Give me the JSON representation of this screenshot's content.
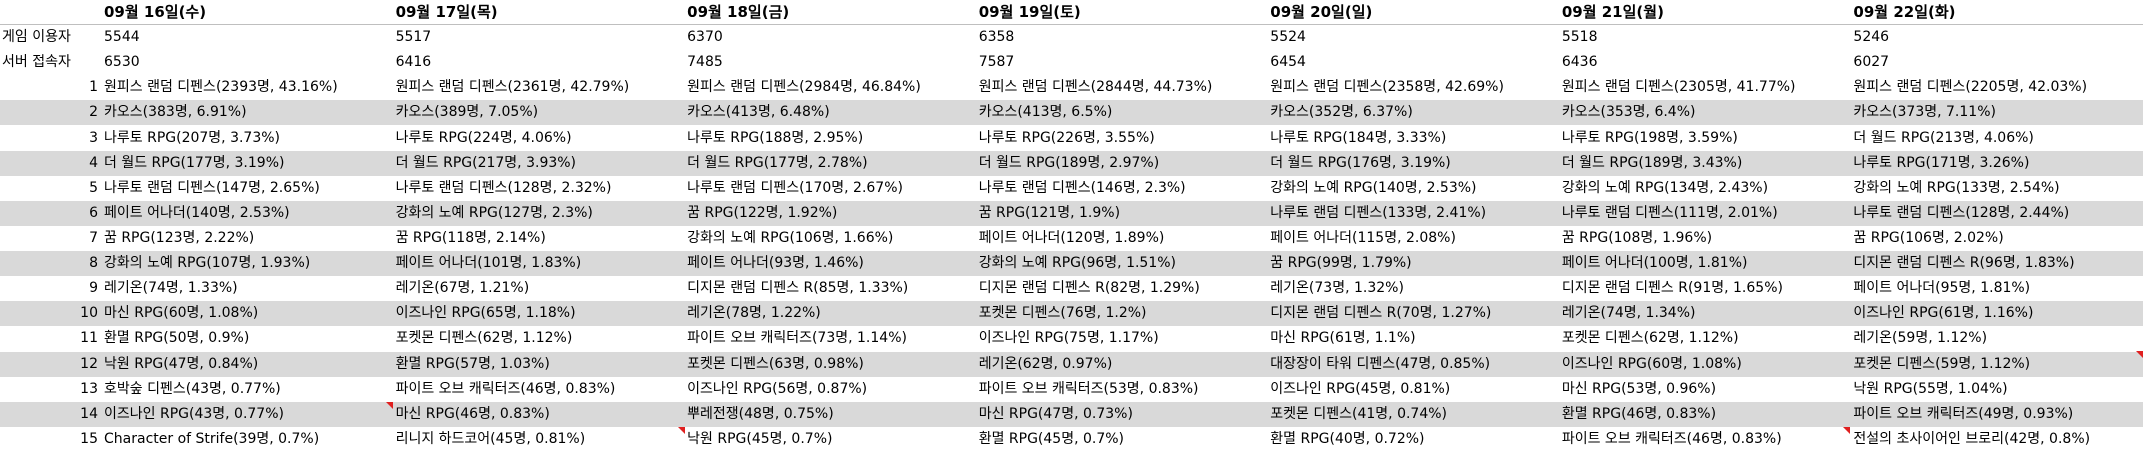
{
  "header": {
    "dates": [
      "09월 16일(수)",
      "09월 17일(목)",
      "09월 18일(금)",
      "09월 19일(토)",
      "09월 20일(일)",
      "09월 21일(월)",
      "09월 22일(화)"
    ]
  },
  "summary": [
    {
      "label": "게임 이용자",
      "values": [
        5544,
        5517,
        6370,
        6358,
        5524,
        5518,
        5246
      ]
    },
    {
      "label": "서버 접속자",
      "values": [
        6530,
        6416,
        7485,
        7587,
        6454,
        6436,
        6027
      ]
    }
  ],
  "ranking": [
    {
      "rank": 1,
      "games": [
        "원피스 랜덤 디펜스(2393명, 43.16%)",
        "원피스 랜덤 디펜스(2361명, 42.79%)",
        "원피스 랜덤 디펜스(2984명, 46.84%)",
        "원피스 랜덤 디펜스(2844명, 44.73%)",
        "원피스 랜덤 디펜스(2358명, 42.69%)",
        "원피스 랜덤 디펜스(2305명, 41.77%)",
        "원피스 랜덤 디펜스(2205명, 42.03%)"
      ]
    },
    {
      "rank": 2,
      "games": [
        "카오스(383명, 6.91%)",
        "카오스(389명, 7.05%)",
        "카오스(413명, 6.48%)",
        "카오스(413명, 6.5%)",
        "카오스(352명, 6.37%)",
        "카오스(353명, 6.4%)",
        "카오스(373명, 7.11%)"
      ]
    },
    {
      "rank": 3,
      "games": [
        "나루토 RPG(207명, 3.73%)",
        "나루토 RPG(224명, 4.06%)",
        "나루토 RPG(188명, 2.95%)",
        "나루토 RPG(226명, 3.55%)",
        "나루토 RPG(184명, 3.33%)",
        "나루토 RPG(198명, 3.59%)",
        "더 월드 RPG(213명, 4.06%)"
      ]
    },
    {
      "rank": 4,
      "games": [
        "더 월드 RPG(177명, 3.19%)",
        "더 월드 RPG(217명, 3.93%)",
        "더 월드 RPG(177명, 2.78%)",
        "더 월드 RPG(189명, 2.97%)",
        "더 월드 RPG(176명, 3.19%)",
        "더 월드 RPG(189명, 3.43%)",
        "나루토 RPG(171명, 3.26%)"
      ]
    },
    {
      "rank": 5,
      "games": [
        "나루토 랜덤 디펜스(147명, 2.65%)",
        "나루토 랜덤 디펜스(128명, 2.32%)",
        "나루토 랜덤 디펜스(170명, 2.67%)",
        "나루토 랜덤 디펜스(146명, 2.3%)",
        "강화의 노예 RPG(140명, 2.53%)",
        "강화의 노예 RPG(134명, 2.43%)",
        "강화의 노예 RPG(133명, 2.54%)"
      ]
    },
    {
      "rank": 6,
      "games": [
        "페이트 어나더(140명, 2.53%)",
        "강화의 노예 RPG(127명, 2.3%)",
        "꿈 RPG(122명, 1.92%)",
        "꿈 RPG(121명, 1.9%)",
        "나루토 랜덤 디펜스(133명, 2.41%)",
        "나루토 랜덤 디펜스(111명, 2.01%)",
        "나루토 랜덤 디펜스(128명, 2.44%)"
      ]
    },
    {
      "rank": 7,
      "games": [
        "꿈 RPG(123명, 2.22%)",
        "꿈 RPG(118명, 2.14%)",
        "강화의 노예 RPG(106명, 1.66%)",
        "페이트 어나더(120명, 1.89%)",
        "페이트 어나더(115명, 2.08%)",
        "꿈 RPG(108명, 1.96%)",
        "꿈 RPG(106명, 2.02%)"
      ]
    },
    {
      "rank": 8,
      "games": [
        "강화의 노예 RPG(107명, 1.93%)",
        "페이트 어나더(101명, 1.83%)",
        "페이트 어나더(93명, 1.46%)",
        "강화의 노예 RPG(96명, 1.51%)",
        "꿈 RPG(99명, 1.79%)",
        "페이트 어나더(100명, 1.81%)",
        "디지몬 랜덤 디펜스 R(96명, 1.83%)"
      ]
    },
    {
      "rank": 9,
      "games": [
        "레기온(74명, 1.33%)",
        "레기온(67명, 1.21%)",
        "디지몬 랜덤 디펜스 R(85명, 1.33%)",
        "디지몬 랜덤 디펜스 R(82명, 1.29%)",
        "레기온(73명, 1.32%)",
        "디지몬 랜덤 디펜스 R(91명, 1.65%)",
        "페이트 어나더(95명, 1.81%)"
      ]
    },
    {
      "rank": 10,
      "games": [
        "마신 RPG(60명, 1.08%)",
        "이즈나인 RPG(65명, 1.18%)",
        "레기온(78명, 1.22%)",
        "포켓몬 디펜스(76명, 1.2%)",
        "디지몬 랜덤 디펜스 R(70명, 1.27%)",
        "레기온(74명, 1.34%)",
        "이즈나인 RPG(61명, 1.16%)"
      ]
    },
    {
      "rank": 11,
      "games": [
        "환멸 RPG(50명, 0.9%)",
        "포켓몬 디펜스(62명, 1.12%)",
        "파이트 오브 캐릭터즈(73명, 1.14%)",
        "이즈나인 RPG(75명, 1.17%)",
        "마신 RPG(61명, 1.1%)",
        "포켓몬 디펜스(62명, 1.12%)",
        "레기온(59명, 1.12%)"
      ]
    },
    {
      "rank": 12,
      "games": [
        "낙원 RPG(47명, 0.84%)",
        "환멸 RPG(57명, 1.03%)",
        "포켓몬 디펜스(63명, 0.98%)",
        "레기온(62명, 0.97%)",
        "대장장이 타워 디펜스(47명, 0.85%)",
        "이즈나인 RPG(60명, 1.08%)",
        "포켓몬 디펜스(59명, 1.12%)"
      ]
    },
    {
      "rank": 13,
      "games": [
        "호박숲 디펜스(43명, 0.77%)",
        "파이트 오브 캐릭터즈(46명, 0.83%)",
        "이즈나인 RPG(56명, 0.87%)",
        "파이트 오브 캐릭터즈(53명, 0.83%)",
        "이즈나인 RPG(45명, 0.81%)",
        "마신 RPG(53명, 0.96%)",
        "낙원 RPG(55명, 1.04%)"
      ]
    },
    {
      "rank": 14,
      "games": [
        "이즈나인 RPG(43명, 0.77%)",
        "마신 RPG(46명, 0.83%)",
        "뿌레전쟁(48명, 0.75%)",
        "마신 RPG(47명, 0.73%)",
        "포켓몬 디펜스(41명, 0.74%)",
        "환멸 RPG(46명, 0.83%)",
        "파이트 오브 캐릭터즈(49명, 0.93%)"
      ]
    },
    {
      "rank": 15,
      "games": [
        "Character of Strife(39명, 0.7%)",
        "리니지 하드코어(45명, 0.81%)",
        "낙원 RPG(45명, 0.7%)",
        "환멸 RPG(45명, 0.7%)",
        "환멸 RPG(40명, 0.72%)",
        "파이트 오브 캐릭터즈(46명, 0.83%)",
        "전설의 초사이어인 브로리(42명, 0.8%)"
      ]
    }
  ]
}
